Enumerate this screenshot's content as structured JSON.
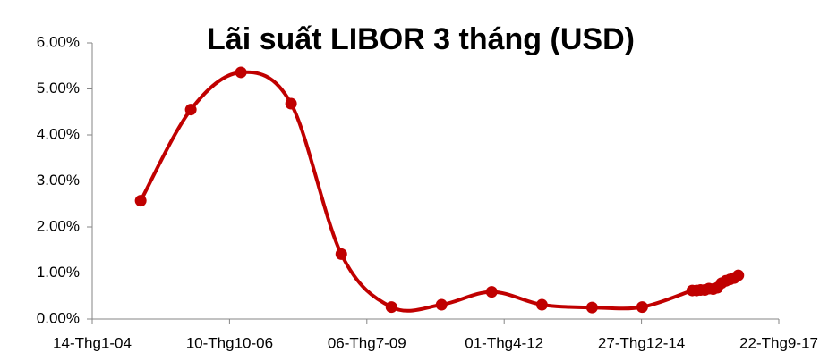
{
  "chart_data": {
    "type": "line",
    "title": "Lãi suất LIBOR 3 tháng (USD)",
    "x": [
      "2005-01-01",
      "2006-01-01",
      "2007-01-01",
      "2008-01-01",
      "2009-01-01",
      "2010-01-01",
      "2011-01-01",
      "2012-01-01",
      "2013-01-01",
      "2014-01-01",
      "2015-01-01",
      "2016-01-01",
      "2016-02-01",
      "2016-03-01",
      "2016-04-01",
      "2016-05-01",
      "2016-06-01",
      "2016-07-01",
      "2016-08-01",
      "2016-09-01",
      "2016-10-01",
      "2016-11-01",
      "2016-12-01"
    ],
    "series": [
      {
        "name": "LIBOR 3M",
        "color": "#c00000",
        "values": [
          2.57,
          4.55,
          5.36,
          4.68,
          1.41,
          0.26,
          0.31,
          0.59,
          0.31,
          0.25,
          0.26,
          0.62,
          0.62,
          0.63,
          0.63,
          0.66,
          0.65,
          0.68,
          0.78,
          0.83,
          0.86,
          0.89,
          0.95
        ]
      }
    ],
    "xlim": [
      "2004-01-14",
      "2017-09-22"
    ],
    "xticks": [
      {
        "value": "2004-01-14",
        "label": "14-Thg1-04"
      },
      {
        "value": "2006-10-10",
        "label": "10-Thg10-06"
      },
      {
        "value": "2009-07-06",
        "label": "06-Thg7-09"
      },
      {
        "value": "2012-04-01",
        "label": "01-Thg4-12"
      },
      {
        "value": "2014-12-27",
        "label": "27-Thg12-14"
      },
      {
        "value": "2017-09-22",
        "label": "22-Thg9-17"
      }
    ],
    "ylim": [
      0,
      6
    ],
    "yticks": [
      {
        "value": 0,
        "label": "0.00%"
      },
      {
        "value": 1,
        "label": "1.00%"
      },
      {
        "value": 2,
        "label": "2.00%"
      },
      {
        "value": 3,
        "label": "3.00%"
      },
      {
        "value": 4,
        "label": "4.00%"
      },
      {
        "value": 5,
        "label": "5.00%"
      },
      {
        "value": 6,
        "label": "6.00%"
      }
    ],
    "grid": false
  }
}
